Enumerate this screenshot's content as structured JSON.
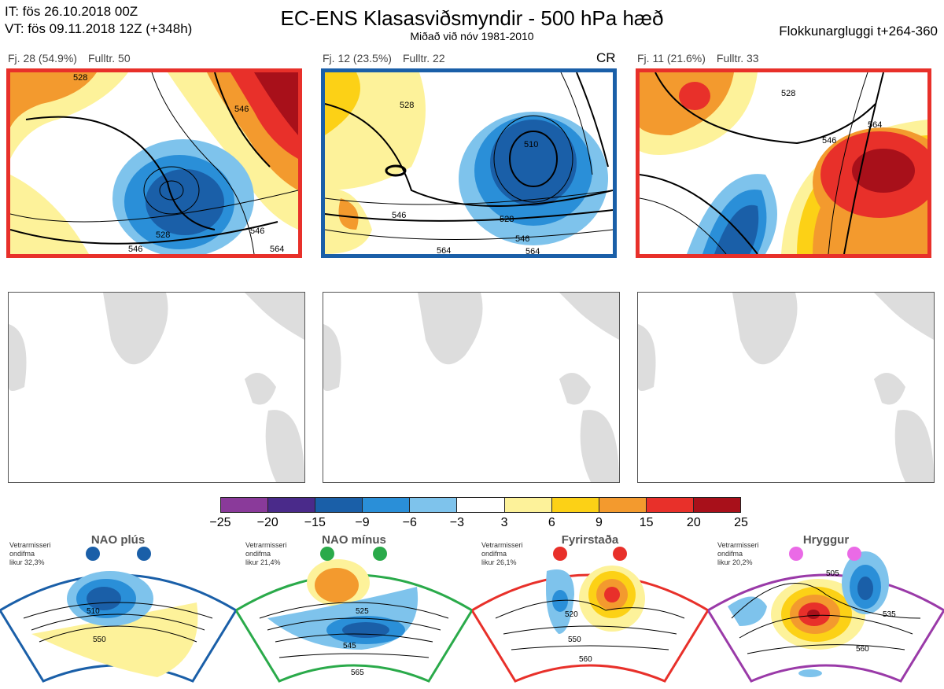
{
  "header": {
    "it_line": "IT: fös 26.10.2018 00Z",
    "vt_line": "VT: fös 09.11.2018 12Z  (+348h)",
    "title": "EC-ENS Klasasviðsmyndir - 500 hPa hæð",
    "subtitle": "Miðað við nóv 1981-2010",
    "window": "Flokkunargluggi t+264-360"
  },
  "clusters": [
    {
      "count": "Fj. 28 (54.9%)",
      "rep": "Fulltr. 50",
      "border": "#e8302a",
      "tag": ""
    },
    {
      "count": "Fj. 12 (23.5%)",
      "rep": "Fulltr. 22",
      "border": "#1a5fa8",
      "tag": "CR"
    },
    {
      "count": "Fj. 11 (21.6%)",
      "rep": "Fulltr. 33",
      "border": "#e8302a",
      "tag": ""
    }
  ],
  "contour_labels": {
    "panel1": [
      "528",
      "546",
      "528",
      "546",
      "546",
      "564"
    ],
    "panel2": [
      "510",
      "528",
      "546",
      "528",
      "546",
      "564",
      "564"
    ],
    "panel3": [
      "528",
      "546",
      "564"
    ]
  },
  "colorbar": {
    "colors": [
      "#8a3a9a",
      "#4a2a8a",
      "#1a5fa8",
      "#2a8fd8",
      "#7ec3ec",
      "#ffffff",
      "#fdf29a",
      "#fcd116",
      "#f39a2e",
      "#e8302a",
      "#a8101a"
    ],
    "ticks": [
      "−25",
      "−20",
      "−15",
      "−9",
      "−6",
      "−3",
      "3",
      "6",
      "9",
      "15",
      "20",
      "25"
    ]
  },
  "regimes": [
    {
      "name": "NAO plús",
      "note": [
        "Vetrarmisseri",
        "ondifma",
        "likur 32,3%"
      ],
      "color": "#1a5fa8",
      "labels": [
        "510",
        "550"
      ]
    },
    {
      "name": "NAO mínus",
      "note": [
        "Vetrarmisseri",
        "ondifma",
        "likur 21,4%"
      ],
      "color": "#2aaa4a",
      "labels": [
        "525",
        "545",
        "565"
      ]
    },
    {
      "name": "Fyrirstaða",
      "note": [
        "Vetrarmisseri",
        "ondifma",
        "likur 26,1%"
      ],
      "color": "#e8302a",
      "labels": [
        "520",
        "550",
        "560"
      ]
    },
    {
      "name": "Hryggur",
      "note": [
        "Vetrarmisseri",
        "ondifma",
        "likur 20,2%"
      ],
      "color": "#9a3aa8",
      "labels": [
        "505",
        "535",
        "560"
      ]
    }
  ]
}
